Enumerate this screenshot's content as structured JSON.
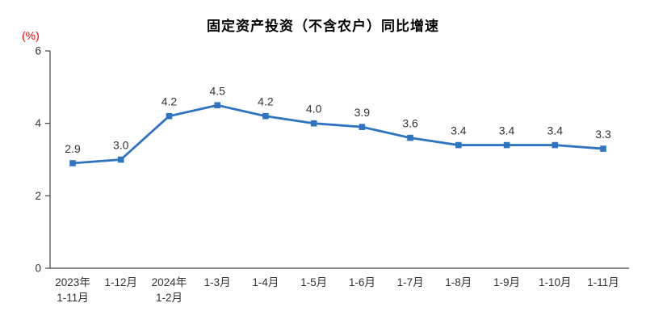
{
  "chart_data": {
    "type": "line",
    "title": "固定资产投资（不含农户）同比增速",
    "ylabel": "(%)",
    "xlabel": "",
    "categories": [
      [
        "2023年",
        "1-11月"
      ],
      [
        "1-12月"
      ],
      [
        "2024年",
        "1-2月"
      ],
      [
        "1-3月"
      ],
      [
        "1-4月"
      ],
      [
        "1-5月"
      ],
      [
        "1-6月"
      ],
      [
        "1-7月"
      ],
      [
        "1-8月"
      ],
      [
        "1-9月"
      ],
      [
        "1-10月"
      ],
      [
        "1-11月"
      ]
    ],
    "values": [
      2.9,
      3.0,
      4.2,
      4.5,
      4.2,
      4.0,
      3.9,
      3.6,
      3.4,
      3.4,
      3.4,
      3.3
    ],
    "data_labels": [
      "2.9",
      "3.0",
      "4.2",
      "4.5",
      "4.2",
      "4.0",
      "3.9",
      "3.6",
      "3.4",
      "3.4",
      "3.4",
      "3.3"
    ],
    "ylim": [
      0,
      6
    ],
    "yticks": [
      0,
      2,
      4,
      6
    ],
    "grid": false,
    "legend": "none",
    "colors": {
      "line": "#2e74c0",
      "marker": "#2e74c0",
      "data_label": "#333333",
      "axis": "#444444",
      "tick_label": "#333333",
      "title": "#000000",
      "unit_label": "#fd0000",
      "background": "#ffffff"
    }
  }
}
